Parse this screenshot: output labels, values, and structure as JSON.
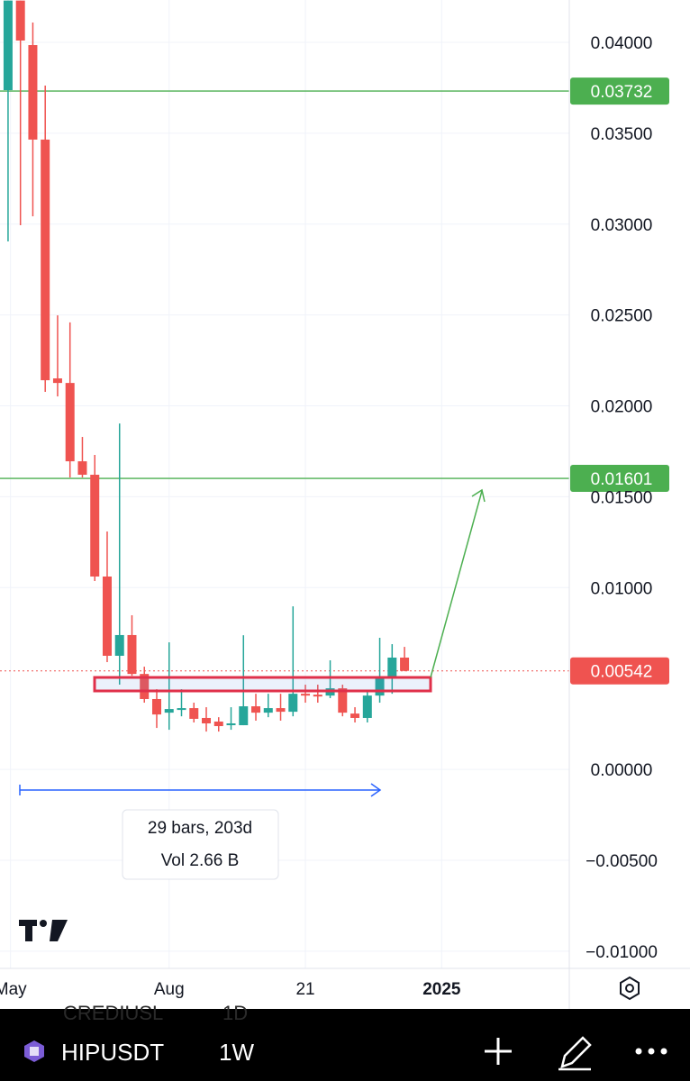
{
  "chart_data": {
    "type": "candlestick",
    "x": [
      0,
      1,
      2,
      3,
      4,
      5,
      6,
      7,
      8,
      9,
      10,
      11,
      12,
      13,
      14,
      15,
      16,
      17,
      18,
      19,
      20,
      21,
      22,
      23,
      24,
      25,
      26,
      27,
      28,
      29,
      30,
      31,
      32
    ],
    "open": [
      0.03737,
      0.0423,
      0.03985,
      0.03465,
      0.02151,
      0.02126,
      0.01695,
      0.01621,
      0.01061,
      0.00625,
      0.00739,
      0.00525,
      0.00387,
      0.00312,
      0.00327,
      0.00337,
      0.00283,
      0.00263,
      0.00243,
      0.00243,
      0.00347,
      0.00312,
      0.00337,
      0.00317,
      0.00416,
      0.00411,
      0.00406,
      0.00446,
      0.00307,
      0.00283,
      0.00406,
      0.00506,
      0.00615
    ],
    "high": [
      0.0423,
      0.0423,
      0.04109,
      0.03762,
      0.02498,
      0.02459,
      0.01829,
      0.0173,
      0.01309,
      0.01903,
      0.00848,
      0.00565,
      0.00441,
      0.00699,
      0.00441,
      0.00367,
      0.00342,
      0.00287,
      0.00342,
      0.00738,
      0.00416,
      0.00416,
      0.00416,
      0.00897,
      0.00466,
      0.00466,
      0.006,
      0.00466,
      0.00342,
      0.00436,
      0.00724,
      0.00689,
      0.00674
    ],
    "low": [
      0.02905,
      0.02994,
      0.03043,
      0.02077,
      0.02052,
      0.01606,
      0.01606,
      0.01036,
      0.0059,
      0.00466,
      0.00515,
      0.00367,
      0.00228,
      0.00218,
      0.00292,
      0.00258,
      0.00208,
      0.00208,
      0.00218,
      0.00243,
      0.00268,
      0.00287,
      0.00268,
      0.00292,
      0.00367,
      0.00367,
      0.00392,
      0.00292,
      0.00258,
      0.00258,
      0.00367,
      0.00416,
      0.0054
    ],
    "close": [
      0.0423,
      0.0401,
      0.03465,
      0.02141,
      0.02126,
      0.01695,
      0.01621,
      0.01061,
      0.00625,
      0.00739,
      0.00525,
      0.00387,
      0.00302,
      0.00332,
      0.00337,
      0.00278,
      0.00253,
      0.00238,
      0.00253,
      0.00347,
      0.00312,
      0.00337,
      0.00317,
      0.00416,
      0.00406,
      0.00401,
      0.00446,
      0.00312,
      0.00283,
      0.00406,
      0.00506,
      0.00615,
      0.00542
    ],
    "up_color": "#26a69a",
    "down_color": "#ef5350",
    "xlim": [
      -0.65,
      45.3
    ],
    "xticks": [
      {
        "value": 0.2,
        "label": "May"
      },
      {
        "value": 13,
        "label": "Aug"
      },
      {
        "value": 24,
        "label": "21"
      },
      {
        "value": 35,
        "label": "2025"
      }
    ],
    "ylim": [
      -0.01095,
      0.04233
    ],
    "yticks": [
      {
        "value": 0.04,
        "label": "0.04000"
      },
      {
        "value": 0.035,
        "label": "0.03500"
      },
      {
        "value": 0.03,
        "label": "0.03000"
      },
      {
        "value": 0.025,
        "label": "0.02500"
      },
      {
        "value": 0.02,
        "label": "0.02000"
      },
      {
        "value": 0.015,
        "label": "0.01500"
      },
      {
        "value": 0.01,
        "label": "0.01000"
      },
      {
        "value": 0,
        "label": "0.00000"
      },
      {
        "value": -0.005,
        "label": "−0.00500"
      },
      {
        "value": -0.01,
        "label": "−0.01000"
      }
    ],
    "grid": true,
    "levels": [
      {
        "value": 0.03732,
        "label": "0.03732",
        "color": "#4caf50",
        "style": "solid"
      },
      {
        "value": 0.01601,
        "label": "0.01601",
        "color": "#4caf50",
        "style": "solid"
      },
      {
        "value": 0.00542,
        "label": "0.00542",
        "color": "#ef5350",
        "style": "dotted"
      }
    ],
    "annotations": [
      "29 bars, 203d",
      "Vol 2.66 B"
    ]
  },
  "toolbar": {
    "symbol": "HIPUSDT",
    "interval": "1W",
    "ghost_symbol": "CREDIUSL",
    "ghost_interval": "1D"
  }
}
